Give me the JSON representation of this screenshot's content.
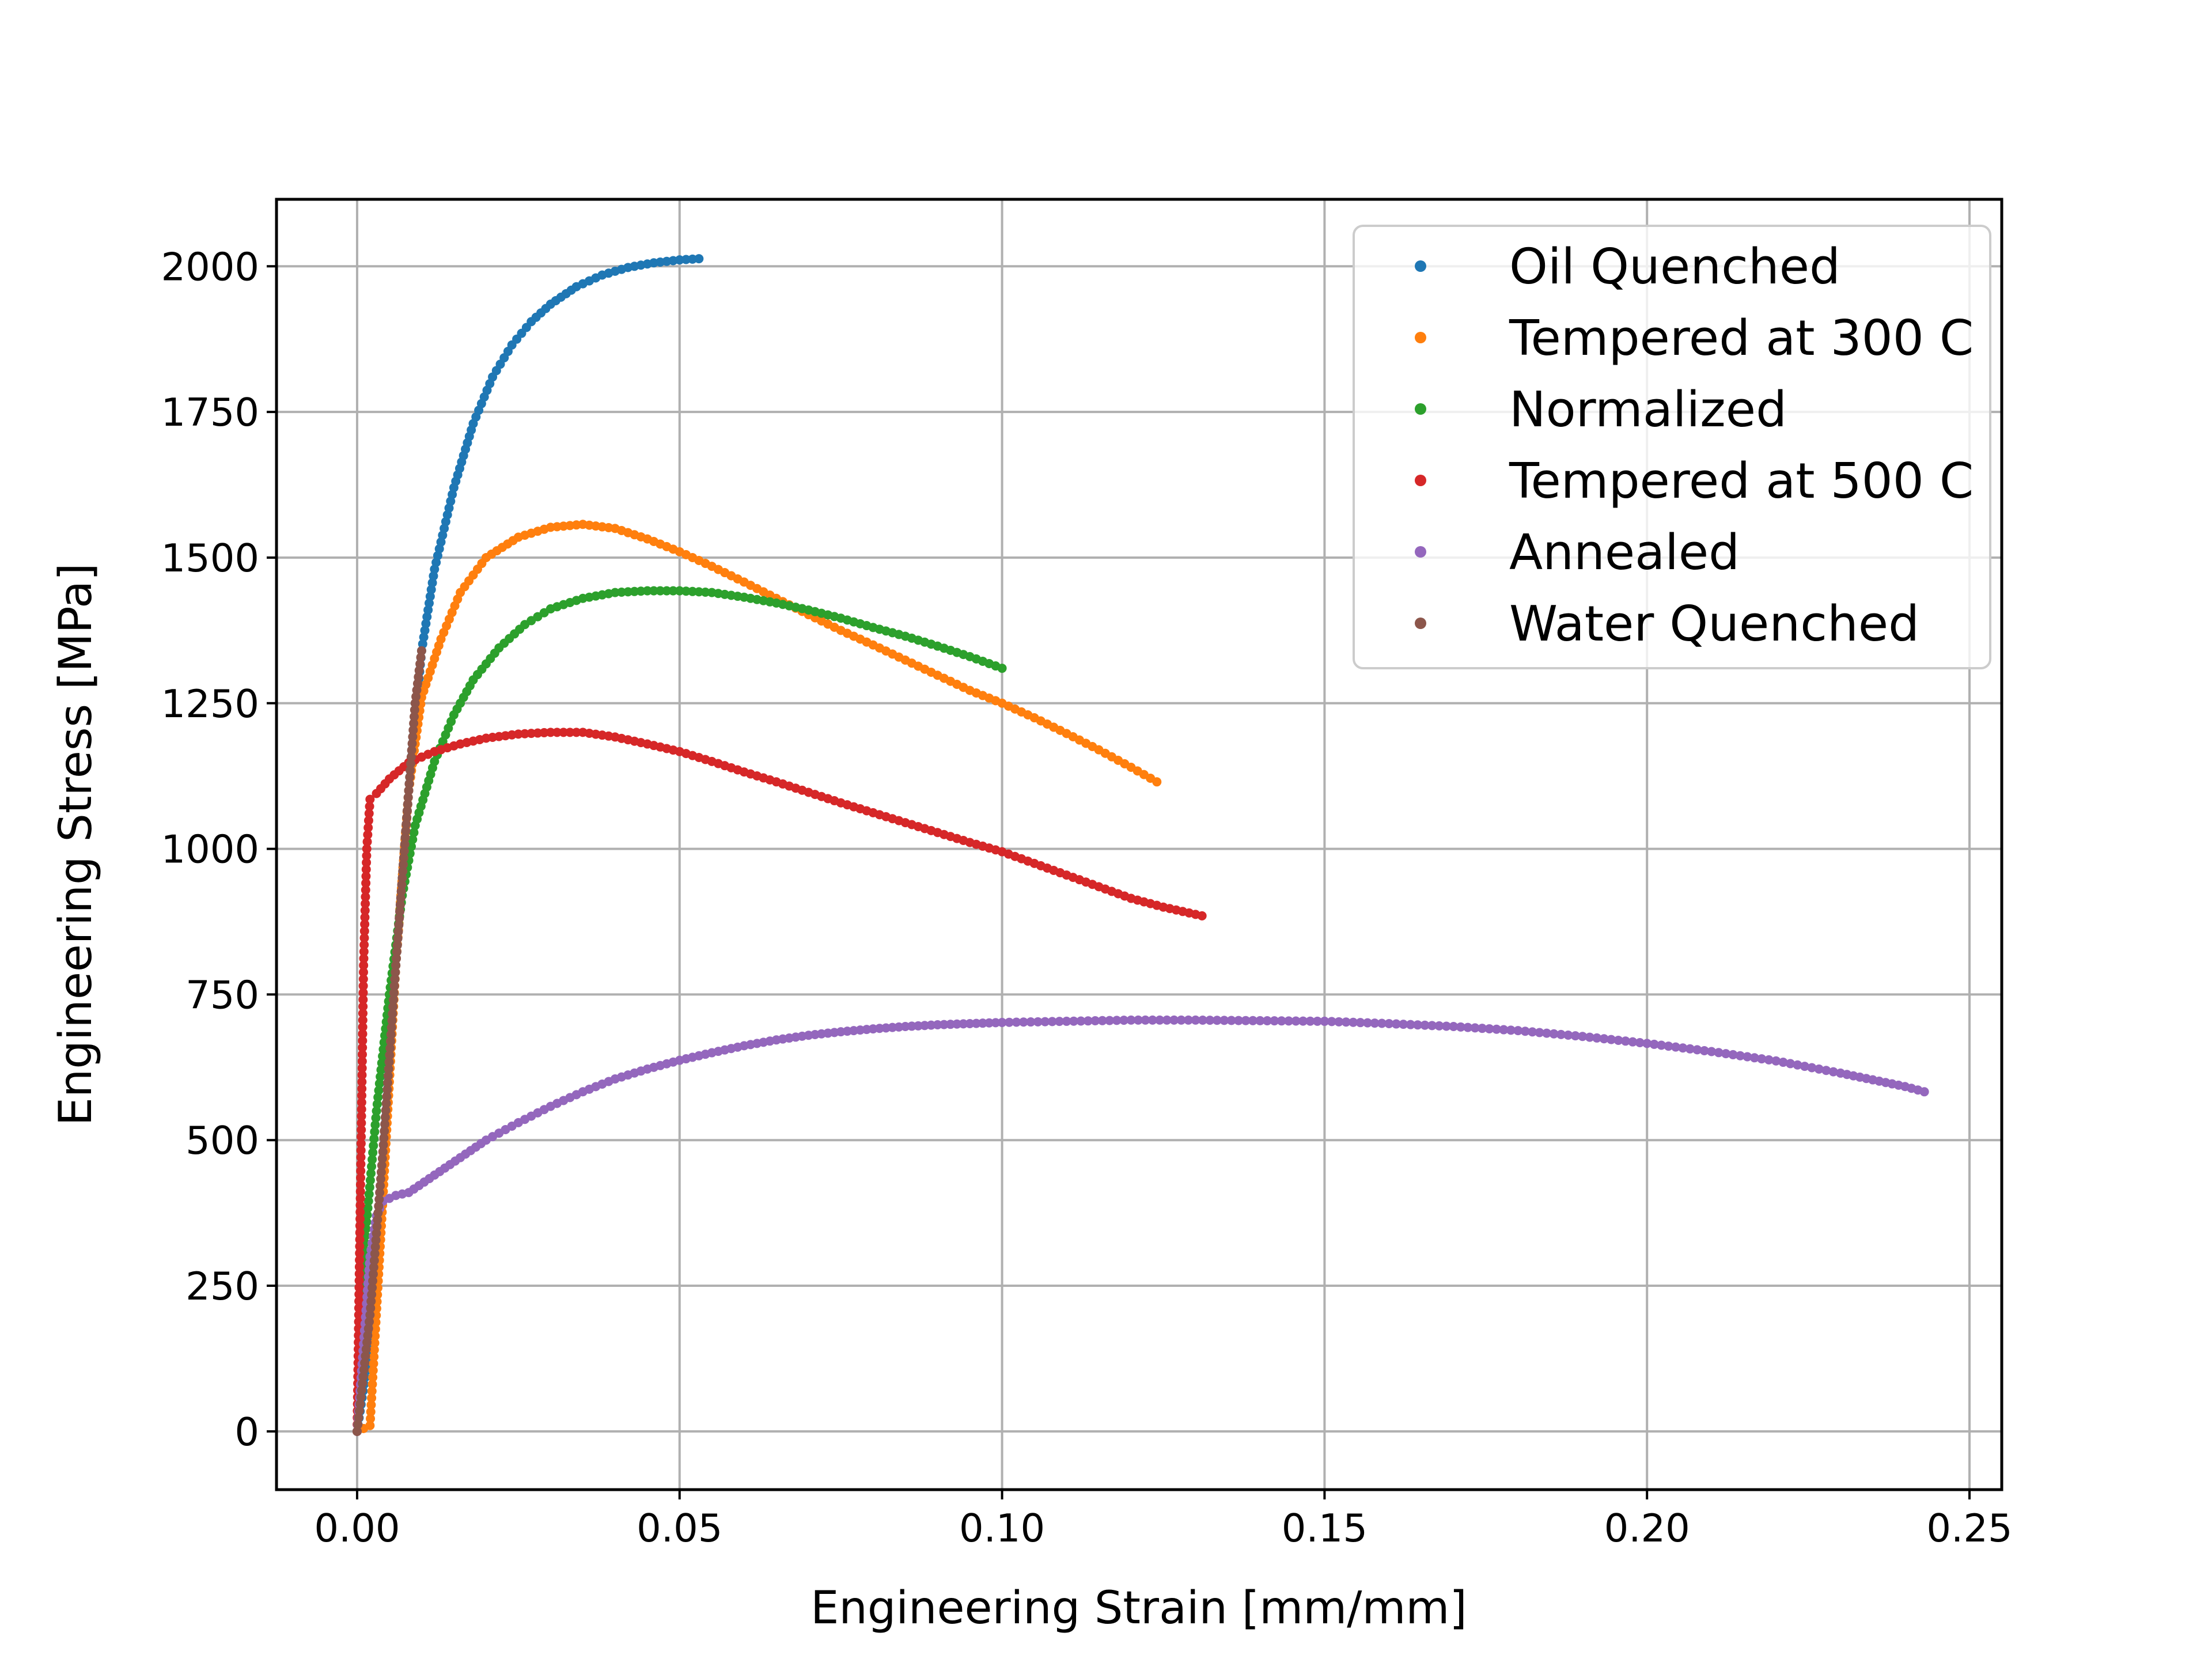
{
  "chart_data": {
    "type": "scatter",
    "title": "",
    "xlabel": "Engineering Strain   [mm/mm]",
    "ylabel": "Engineering Stress   [MPa]",
    "xlim": [
      -0.0125,
      0.255
    ],
    "ylim": [
      -100,
      2115
    ],
    "x_ticks": [
      0.0,
      0.05,
      0.1,
      0.15,
      0.2,
      0.25
    ],
    "x_tick_labels": [
      "0.00",
      "0.05",
      "0.10",
      "0.15",
      "0.20",
      "0.25"
    ],
    "y_ticks": [
      0,
      250,
      500,
      750,
      1000,
      1250,
      1500,
      1750,
      2000
    ],
    "y_tick_labels": [
      "0",
      "250",
      "500",
      "750",
      "1000",
      "1250",
      "1500",
      "1750",
      "2000"
    ],
    "grid": true,
    "legend_position": "top-right",
    "series": [
      {
        "name": "Oil Quenched",
        "color": "#1f77b4",
        "points": [
          [
            0.0,
            0
          ],
          [
            0.002,
            150
          ],
          [
            0.004,
            450
          ],
          [
            0.006,
            800
          ],
          [
            0.008,
            1100
          ],
          [
            0.01,
            1340
          ],
          [
            0.012,
            1480
          ],
          [
            0.015,
            1620
          ],
          [
            0.018,
            1730
          ],
          [
            0.021,
            1810
          ],
          [
            0.024,
            1865
          ],
          [
            0.027,
            1905
          ],
          [
            0.03,
            1935
          ],
          [
            0.034,
            1965
          ],
          [
            0.038,
            1985
          ],
          [
            0.042,
            1998
          ],
          [
            0.046,
            2006
          ],
          [
            0.05,
            2011
          ],
          [
            0.053,
            2013
          ]
        ]
      },
      {
        "name": "Tempered at 300 C",
        "color": "#ff7f0e",
        "points": [
          [
            0.0,
            0
          ],
          [
            0.002,
            10
          ],
          [
            0.004,
            400
          ],
          [
            0.006,
            800
          ],
          [
            0.008,
            1100
          ],
          [
            0.01,
            1260
          ],
          [
            0.013,
            1360
          ],
          [
            0.016,
            1440
          ],
          [
            0.02,
            1500
          ],
          [
            0.025,
            1535
          ],
          [
            0.03,
            1552
          ],
          [
            0.035,
            1557
          ],
          [
            0.04,
            1550
          ],
          [
            0.045,
            1532
          ],
          [
            0.05,
            1510
          ],
          [
            0.055,
            1485
          ],
          [
            0.06,
            1458
          ],
          [
            0.065,
            1430
          ],
          [
            0.07,
            1402
          ],
          [
            0.075,
            1375
          ],
          [
            0.08,
            1350
          ],
          [
            0.085,
            1324
          ],
          [
            0.09,
            1298
          ],
          [
            0.095,
            1272
          ],
          [
            0.1,
            1250
          ],
          [
            0.105,
            1225
          ],
          [
            0.11,
            1198
          ],
          [
            0.115,
            1170
          ],
          [
            0.12,
            1140
          ],
          [
            0.124,
            1115
          ]
        ]
      },
      {
        "name": "Normalized",
        "color": "#2ca02c",
        "points": [
          [
            0.0,
            0
          ],
          [
            0.001,
            300
          ],
          [
            0.003,
            550
          ],
          [
            0.005,
            750
          ],
          [
            0.007,
            920
          ],
          [
            0.009,
            1040
          ],
          [
            0.012,
            1150
          ],
          [
            0.015,
            1230
          ],
          [
            0.018,
            1290
          ],
          [
            0.022,
            1345
          ],
          [
            0.026,
            1385
          ],
          [
            0.03,
            1412
          ],
          [
            0.035,
            1430
          ],
          [
            0.04,
            1440
          ],
          [
            0.045,
            1443
          ],
          [
            0.05,
            1443
          ],
          [
            0.055,
            1440
          ],
          [
            0.06,
            1432
          ],
          [
            0.065,
            1422
          ],
          [
            0.07,
            1410
          ],
          [
            0.075,
            1396
          ],
          [
            0.08,
            1380
          ],
          [
            0.085,
            1365
          ],
          [
            0.09,
            1348
          ],
          [
            0.095,
            1330
          ],
          [
            0.1,
            1310
          ]
        ]
      },
      {
        "name": "Tempered at 500 C",
        "color": "#d62728",
        "points": [
          [
            0.0,
            0
          ],
          [
            0.0005,
            400
          ],
          [
            0.001,
            800
          ],
          [
            0.0015,
            1000
          ],
          [
            0.002,
            1085
          ],
          [
            0.003,
            1095
          ],
          [
            0.005,
            1120
          ],
          [
            0.008,
            1148
          ],
          [
            0.012,
            1167
          ],
          [
            0.016,
            1180
          ],
          [
            0.02,
            1190
          ],
          [
            0.025,
            1197
          ],
          [
            0.03,
            1200
          ],
          [
            0.035,
            1200
          ],
          [
            0.04,
            1192
          ],
          [
            0.045,
            1180
          ],
          [
            0.05,
            1167
          ],
          [
            0.055,
            1150
          ],
          [
            0.06,
            1132
          ],
          [
            0.065,
            1115
          ],
          [
            0.07,
            1097
          ],
          [
            0.075,
            1079
          ],
          [
            0.08,
            1062
          ],
          [
            0.085,
            1045
          ],
          [
            0.09,
            1028
          ],
          [
            0.095,
            1011
          ],
          [
            0.1,
            995
          ],
          [
            0.105,
            975
          ],
          [
            0.11,
            955
          ],
          [
            0.115,
            935
          ],
          [
            0.12,
            915
          ],
          [
            0.125,
            900
          ],
          [
            0.131,
            885
          ]
        ]
      },
      {
        "name": "Annealed",
        "color": "#9467bd",
        "points": [
          [
            0.0,
            0
          ],
          [
            0.001,
            150
          ],
          [
            0.002,
            300
          ],
          [
            0.003,
            370
          ],
          [
            0.004,
            395
          ],
          [
            0.006,
            405
          ],
          [
            0.008,
            410
          ],
          [
            0.012,
            440
          ],
          [
            0.016,
            470
          ],
          [
            0.02,
            500
          ],
          [
            0.025,
            530
          ],
          [
            0.03,
            558
          ],
          [
            0.035,
            583
          ],
          [
            0.04,
            605
          ],
          [
            0.045,
            622
          ],
          [
            0.05,
            637
          ],
          [
            0.055,
            650
          ],
          [
            0.06,
            662
          ],
          [
            0.065,
            672
          ],
          [
            0.07,
            680
          ],
          [
            0.075,
            686
          ],
          [
            0.08,
            691
          ],
          [
            0.085,
            695
          ],
          [
            0.09,
            698
          ],
          [
            0.095,
            700
          ],
          [
            0.1,
            702
          ],
          [
            0.11,
            704
          ],
          [
            0.12,
            706
          ],
          [
            0.13,
            706
          ],
          [
            0.14,
            705
          ],
          [
            0.15,
            704
          ],
          [
            0.16,
            700
          ],
          [
            0.17,
            695
          ],
          [
            0.18,
            688
          ],
          [
            0.19,
            678
          ],
          [
            0.2,
            666
          ],
          [
            0.21,
            652
          ],
          [
            0.22,
            636
          ],
          [
            0.23,
            615
          ],
          [
            0.24,
            592
          ],
          [
            0.243,
            583
          ]
        ]
      },
      {
        "name": "Water Quenched",
        "color": "#8c564b",
        "points": [
          [
            0.0,
            0
          ],
          [
            0.002,
            200
          ],
          [
            0.004,
            480
          ],
          [
            0.006,
            800
          ],
          [
            0.007,
            950
          ],
          [
            0.008,
            1100
          ],
          [
            0.009,
            1250
          ],
          [
            0.01,
            1340
          ]
        ]
      }
    ]
  }
}
